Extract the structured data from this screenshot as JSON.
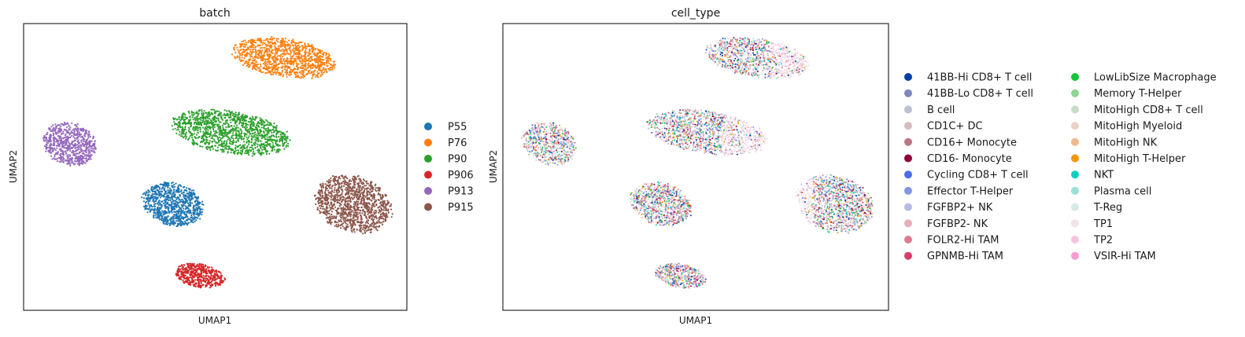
{
  "chart_data": [
    {
      "type": "scatter",
      "title": "batch",
      "xlabel": "UMAP1",
      "ylabel": "UMAP2",
      "xlim": [
        0,
        1
      ],
      "ylim": [
        0,
        1
      ],
      "grid": false,
      "legend_placement": "right",
      "series": [
        {
          "name": "P55",
          "color": "#1f77b4",
          "clusters": [
            {
              "cx": 0.39,
              "cy": 0.37,
              "rx": 0.08,
              "ry": 0.075,
              "n": 900
            }
          ]
        },
        {
          "name": "P76",
          "color": "#ff7f0e",
          "clusters": [
            {
              "cx": 0.68,
              "cy": 0.88,
              "rx": 0.135,
              "ry": 0.068,
              "n": 1100
            }
          ]
        },
        {
          "name": "P90",
          "color": "#2ca02c",
          "clusters": [
            {
              "cx": 0.54,
              "cy": 0.62,
              "rx": 0.155,
              "ry": 0.075,
              "n": 1300
            }
          ]
        },
        {
          "name": "P906",
          "color": "#d62728",
          "clusters": [
            {
              "cx": 0.46,
              "cy": 0.12,
              "rx": 0.065,
              "ry": 0.042,
              "n": 500
            }
          ]
        },
        {
          "name": "P913",
          "color": "#9467bd",
          "clusters": [
            {
              "cx": 0.12,
              "cy": 0.58,
              "rx": 0.07,
              "ry": 0.075,
              "n": 700
            }
          ]
        },
        {
          "name": "P915",
          "color": "#8c564b",
          "clusters": [
            {
              "cx": 0.86,
              "cy": 0.37,
              "rx": 0.1,
              "ry": 0.1,
              "n": 1200
            }
          ]
        }
      ]
    },
    {
      "type": "scatter",
      "title": "cell_type",
      "xlabel": "UMAP1",
      "ylabel": "UMAP2",
      "xlim": [
        0,
        1
      ],
      "ylim": [
        0,
        1
      ],
      "grid": false,
      "legend_placement": "right",
      "clusters": [
        {
          "cx": 0.41,
          "cy": 0.37,
          "rx": 0.08,
          "ry": 0.075,
          "n": 900
        },
        {
          "cx": 0.66,
          "cy": 0.88,
          "rx": 0.135,
          "ry": 0.068,
          "n": 1100
        },
        {
          "cx": 0.53,
          "cy": 0.62,
          "rx": 0.155,
          "ry": 0.075,
          "n": 1300
        },
        {
          "cx": 0.46,
          "cy": 0.12,
          "rx": 0.065,
          "ry": 0.042,
          "n": 500
        },
        {
          "cx": 0.12,
          "cy": 0.58,
          "rx": 0.07,
          "ry": 0.075,
          "n": 700
        },
        {
          "cx": 0.86,
          "cy": 0.37,
          "rx": 0.1,
          "ry": 0.1,
          "n": 1200
        }
      ],
      "series": [
        {
          "name": "41BB-Hi CD8+ T cell",
          "color": "#023fa5"
        },
        {
          "name": "41BB-Lo CD8+ T cell",
          "color": "#7d87b9"
        },
        {
          "name": "B cell",
          "color": "#bec1d4"
        },
        {
          "name": "CD1C+ DC",
          "color": "#d6bcc0"
        },
        {
          "name": "CD16+ Monocyte",
          "color": "#bb7784"
        },
        {
          "name": "CD16- Monocyte",
          "color": "#8e063b"
        },
        {
          "name": "Cycling CD8+ T cell",
          "color": "#4a6fe3"
        },
        {
          "name": "Effector T-Helper",
          "color": "#8595e1"
        },
        {
          "name": "FGFBP2+ NK",
          "color": "#b5bbe3"
        },
        {
          "name": "FGFBP2- NK",
          "color": "#e6afb9"
        },
        {
          "name": "FOLR2-Hi TAM",
          "color": "#e07b91"
        },
        {
          "name": "GPNMB-Hi TAM",
          "color": "#d33f6a"
        },
        {
          "name": "LowLibSize Macrophage",
          "color": "#11c638"
        },
        {
          "name": "Memory T-Helper",
          "color": "#8dd593"
        },
        {
          "name": "MitoHigh CD8+ T cell",
          "color": "#c6dec7"
        },
        {
          "name": "MitoHigh Myeloid",
          "color": "#ead3c6"
        },
        {
          "name": "MitoHigh NK",
          "color": "#f0b98d"
        },
        {
          "name": "MitoHigh T-Helper",
          "color": "#ef9708"
        },
        {
          "name": "NKT",
          "color": "#0fcfc0"
        },
        {
          "name": "Plasma cell",
          "color": "#9cded6"
        },
        {
          "name": "T-Reg",
          "color": "#d5eae7"
        },
        {
          "name": "TP1",
          "color": "#f3e1eb"
        },
        {
          "name": "TP2",
          "color": "#f6c4e1"
        },
        {
          "name": "VSIR-Hi TAM",
          "color": "#f79cd4"
        }
      ]
    }
  ]
}
